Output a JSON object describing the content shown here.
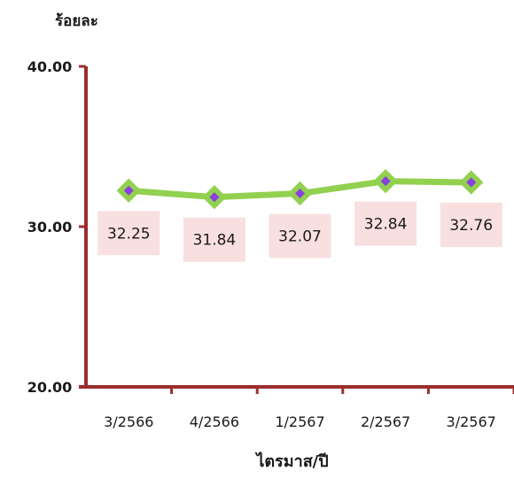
{
  "chart_data": {
    "type": "line",
    "title": "",
    "ylabel": "ร้อยละ",
    "xlabel": "ไตรมาส/ปี",
    "categories": [
      "3/2566",
      "4/2566",
      "1/2567",
      "2/2567",
      "3/2567"
    ],
    "series": [
      {
        "values": [
          32.25,
          31.84,
          32.07,
          32.84,
          32.76
        ]
      }
    ],
    "data_labels": [
      "32.25",
      "31.84",
      "32.07",
      "32.84",
      "32.76"
    ],
    "y_ticks": [
      "20.00",
      "30.00",
      "40.00"
    ],
    "ylim": [
      20,
      40
    ],
    "grid": false,
    "colors": {
      "axis": "#9B2D2D",
      "line": "#92D050",
      "marker_fill": "#8A3FE0",
      "marker_border": "#92D050",
      "label_box": "#F8DFE0"
    }
  }
}
